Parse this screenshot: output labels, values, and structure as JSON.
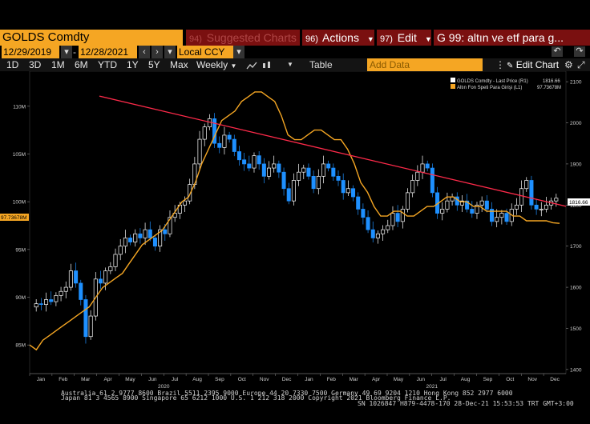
{
  "toolbar": {
    "ticker": "GOLDS Comdty",
    "suggested_num": "94)",
    "suggested_label": "Suggested Charts",
    "actions_num": "96)",
    "actions_label": "Actions",
    "edit_num": "97)",
    "edit_label": "Edit",
    "title": "G 99: altın ve etf para g..."
  },
  "dates": {
    "start": "12/29/2019",
    "end": "12/28/2021",
    "currency": "Local CCY"
  },
  "periods": [
    "1D",
    "3D",
    "1M",
    "6M",
    "YTD",
    "1Y",
    "5Y",
    "Max"
  ],
  "frequency": "Weekly",
  "table_label": "Table",
  "add_data_placeholder": "Add Data",
  "edit_chart_label": "Edit Chart",
  "legend": {
    "series1": "GOLDS Comdty - Last Price (R1)",
    "series1_value": "1816.66",
    "series2": "Altın Fon Speti Para Girişi (L1)",
    "series2_value": "97.73678M"
  },
  "colors": {
    "up": "#ffffff",
    "down": "#1e90ff",
    "line": "#f5a623",
    "trend": "#ff2a4a",
    "accent": "#f5a623"
  },
  "chart_data": {
    "type": "line",
    "left_axis": {
      "ticks": [
        "85M",
        "90M",
        "95M",
        "100M",
        "105M",
        "110M"
      ],
      "range": [
        82,
        113
      ]
    },
    "right_axis": {
      "ticks": [
        "1400",
        "1500",
        "1600",
        "1700",
        "1800",
        "1900",
        "2000",
        "2100"
      ],
      "range": [
        1390,
        2110
      ]
    },
    "months": [
      "Jan",
      "Feb",
      "Mar",
      "Apr",
      "May",
      "Jun",
      "Jul",
      "Aug",
      "Sep",
      "Oct",
      "Nov",
      "Dec",
      "Jan",
      "Feb",
      "Mar",
      "Apr",
      "May",
      "Jun",
      "Jul",
      "Aug",
      "Sep",
      "Oct",
      "Nov",
      "Dec"
    ],
    "years": [
      "2020",
      "2021"
    ],
    "last_price_label": "1816.66",
    "fund_flow_label": "97.73678M",
    "candles_close": [
      1552,
      1560,
      1558,
      1570,
      1565,
      1580,
      1590,
      1600,
      1640,
      1610,
      1570,
      1480,
      1530,
      1620,
      1610,
      1640,
      1650,
      1680,
      1700,
      1720,
      1710,
      1730,
      1720,
      1740,
      1720,
      1700,
      1740,
      1730,
      1770,
      1780,
      1800,
      1810,
      1850,
      1900,
      1960,
      1990,
      2010,
      1950,
      1940,
      1970,
      1960,
      1930,
      1910,
      1900,
      1890,
      1920,
      1900,
      1870,
      1890,
      1900,
      1880,
      1840,
      1810,
      1860,
      1880,
      1890,
      1870,
      1840,
      1870,
      1900,
      1890,
      1870,
      1860,
      1830,
      1840,
      1820,
      1790,
      1770,
      1740,
      1720,
      1730,
      1740,
      1750,
      1780,
      1760,
      1790,
      1830,
      1860,
      1880,
      1900,
      1890,
      1830,
      1780,
      1790,
      1810,
      1820,
      1800,
      1810,
      1790,
      1780,
      1800,
      1810,
      1790,
      1760,
      1770,
      1780,
      1760,
      1790,
      1800,
      1840,
      1860,
      1800,
      1790,
      1790,
      1800,
      1810,
      1816.66
    ],
    "fund_flow": [
      85,
      84.5,
      85.5,
      86,
      86.5,
      87,
      87.5,
      88,
      88.5,
      89,
      90,
      91,
      91.5,
      92,
      92.5,
      93.5,
      94.5,
      95.5,
      96,
      96.5,
      97,
      98,
      99,
      100,
      100.5,
      102,
      104,
      105.5,
      107,
      108.5,
      109,
      109.5,
      110.5,
      111,
      111.5,
      111.5,
      111,
      110.5,
      109,
      107,
      106.5,
      106.5,
      107,
      107.5,
      107.5,
      107,
      106.5,
      106.5,
      105.5,
      104,
      102,
      101,
      99.5,
      98.5,
      98.5,
      99,
      99,
      98.5,
      98.5,
      99,
      99.5,
      99.5,
      100,
      100.5,
      100.5,
      100,
      100,
      99.5,
      99.5,
      99,
      99,
      99,
      99,
      98.5,
      98.5,
      98,
      98,
      98,
      98,
      97.8,
      97.73678
    ],
    "trendline": {
      "from": [
        0.13,
        2065
      ],
      "to": [
        1.0,
        1797
      ]
    }
  },
  "footer": {
    "line1": "Australia 61 2 9777 8600 Brazil 5511 2395 9000 Europe 44 20 7330 7500 Germany 49 69 9204 1210 Hong Kong 852 2977 6000",
    "line2": "Japan 81 3 4565 8900        Singapore 65 6212 1000      U.S. 1 212 318 2000        Copyright 2021 Bloomberg Finance L.P.",
    "line3": "SN 1026847 H879-4478-170 28-Dec-21 15:53:53 TRT  GMT+3:00"
  }
}
